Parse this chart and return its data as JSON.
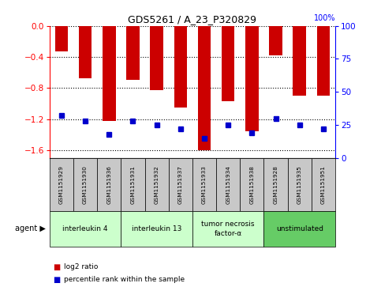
{
  "title": "GDS5261 / A_23_P320829",
  "samples": [
    "GSM1151929",
    "GSM1151930",
    "GSM1151936",
    "GSM1151931",
    "GSM1151932",
    "GSM1151937",
    "GSM1151933",
    "GSM1151934",
    "GSM1151938",
    "GSM1151928",
    "GSM1151935",
    "GSM1151951"
  ],
  "log2_ratio": [
    -0.33,
    -0.68,
    -1.22,
    -0.7,
    -0.83,
    -1.05,
    -1.6,
    -0.97,
    -1.36,
    -0.38,
    -0.9,
    -0.9
  ],
  "percentile": [
    32,
    28,
    18,
    28,
    25,
    22,
    15,
    25,
    19,
    30,
    25,
    22
  ],
  "groups": [
    {
      "label": "interleukin 4",
      "start": 0,
      "end": 3,
      "color": "#ccffcc"
    },
    {
      "label": "interleukin 13",
      "start": 3,
      "end": 6,
      "color": "#ccffcc"
    },
    {
      "label": "tumor necrosis\nfactor-α",
      "start": 6,
      "end": 9,
      "color": "#ccffcc"
    },
    {
      "label": "unstimulated",
      "start": 9,
      "end": 12,
      "color": "#66cc66"
    }
  ],
  "bar_color": "#cc0000",
  "dot_color": "#0000cc",
  "ylim_left": [
    -1.7,
    0.0
  ],
  "ylim_right": [
    0,
    100
  ],
  "yticks_left": [
    0,
    -0.4,
    -0.8,
    -1.2,
    -1.6
  ],
  "yticks_right": [
    0,
    25,
    50,
    75,
    100
  ],
  "sample_box_color": "#c8c8c8",
  "plot_bg_color": "#ffffff",
  "grid_color": "#000000"
}
